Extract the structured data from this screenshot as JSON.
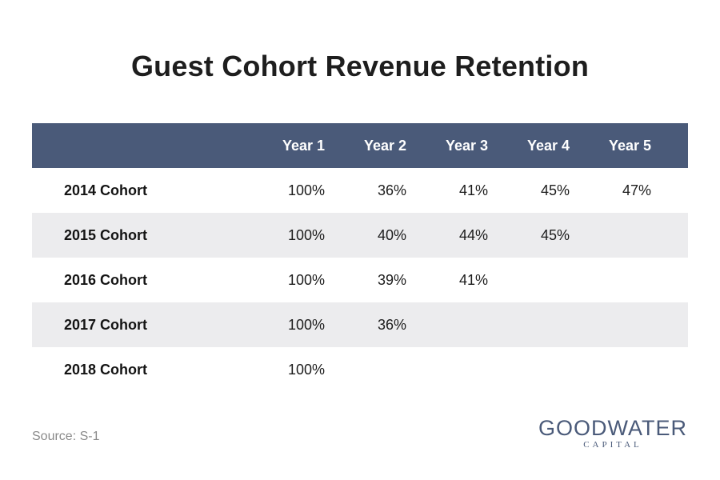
{
  "title": "Guest Cohort Revenue Retention",
  "source": "Source: S-1",
  "logo": {
    "main": "GOODWATER",
    "sub": "CAPITAL"
  },
  "colors": {
    "header_bg": "#4a5a79",
    "stripe_bg": "#ececee",
    "brand": "#4a5a79"
  },
  "chart_data": {
    "type": "table",
    "title": "Guest Cohort Revenue Retention",
    "columns": [
      "",
      "Year 1",
      "Year 2",
      "Year 3",
      "Year 4",
      "Year 5"
    ],
    "rows": [
      {
        "label": "2014 Cohort",
        "values": [
          "100%",
          "36%",
          "41%",
          "45%",
          "47%"
        ]
      },
      {
        "label": "2015 Cohort",
        "values": [
          "100%",
          "40%",
          "44%",
          "45%",
          ""
        ]
      },
      {
        "label": "2016 Cohort",
        "values": [
          "100%",
          "39%",
          "41%",
          "",
          ""
        ]
      },
      {
        "label": "2017 Cohort",
        "values": [
          "100%",
          "36%",
          "",
          "",
          ""
        ]
      },
      {
        "label": "2018 Cohort",
        "values": [
          "100%",
          "",
          "",
          "",
          ""
        ]
      }
    ]
  }
}
